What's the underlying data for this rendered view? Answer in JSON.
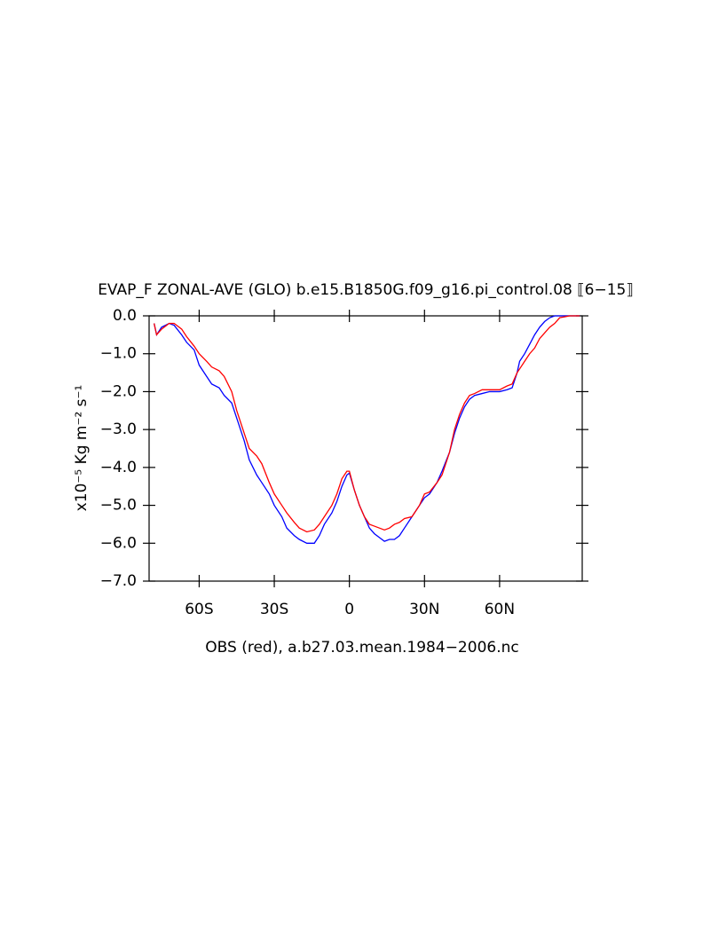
{
  "chart_data": {
    "type": "line",
    "title": "EVAP_F ZONAL-AVE (GLO) b.e15.B1850G.f09_g16.pi_control.08 ⟦6−15⟧",
    "x_label": "OBS (red), a.b27.03.mean.1984−2006.nc",
    "y_label": "x10⁻⁵ Kg m⁻² s⁻¹",
    "x": [
      -78,
      -77,
      -75,
      -72,
      -70,
      -67,
      -65,
      -62,
      -60,
      -57,
      -55,
      -52,
      -50,
      -47,
      -45,
      -42,
      -40,
      -37,
      -35,
      -32,
      -30,
      -27,
      -25,
      -22,
      -20,
      -17,
      -14,
      -12,
      -10,
      -7,
      -5,
      -3,
      -1,
      0,
      2,
      4,
      6,
      8,
      10,
      12,
      14,
      16,
      18,
      20,
      22,
      25,
      28,
      30,
      32,
      35,
      37,
      40,
      42,
      44,
      46,
      48,
      50,
      53,
      56,
      60,
      63,
      65,
      67,
      68,
      70,
      72,
      74,
      76,
      78,
      80,
      82,
      84,
      88,
      92
    ],
    "series": [
      {
        "color": "#0000ff",
        "values": [
          -0.2,
          -0.5,
          -0.3,
          -0.2,
          -0.25,
          -0.5,
          -0.7,
          -0.9,
          -1.3,
          -1.6,
          -1.8,
          -1.9,
          -2.1,
          -2.3,
          -2.7,
          -3.3,
          -3.8,
          -4.2,
          -4.4,
          -4.7,
          -5.0,
          -5.3,
          -5.6,
          -5.8,
          -5.9,
          -6.0,
          -6.0,
          -5.8,
          -5.5,
          -5.2,
          -4.9,
          -4.5,
          -4.2,
          -4.15,
          -4.6,
          -5.0,
          -5.3,
          -5.6,
          -5.75,
          -5.85,
          -5.95,
          -5.9,
          -5.9,
          -5.8,
          -5.6,
          -5.3,
          -5.0,
          -4.8,
          -4.7,
          -4.4,
          -4.1,
          -3.6,
          -3.1,
          -2.7,
          -2.4,
          -2.2,
          -2.1,
          -2.05,
          -2.0,
          -2.0,
          -1.95,
          -1.9,
          -1.5,
          -1.2,
          -1.0,
          -0.75,
          -0.5,
          -0.3,
          -0.15,
          -0.05,
          0,
          0,
          0,
          0
        ]
      },
      {
        "color": "#ff0000",
        "values": [
          -0.2,
          -0.5,
          -0.35,
          -0.2,
          -0.2,
          -0.35,
          -0.55,
          -0.8,
          -1.0,
          -1.2,
          -1.35,
          -1.45,
          -1.6,
          -2.0,
          -2.5,
          -3.1,
          -3.5,
          -3.7,
          -3.9,
          -4.4,
          -4.7,
          -5.0,
          -5.2,
          -5.45,
          -5.6,
          -5.7,
          -5.65,
          -5.5,
          -5.3,
          -5.0,
          -4.7,
          -4.3,
          -4.1,
          -4.1,
          -4.6,
          -5.0,
          -5.3,
          -5.5,
          -5.55,
          -5.6,
          -5.65,
          -5.6,
          -5.5,
          -5.45,
          -5.35,
          -5.3,
          -5.0,
          -4.7,
          -4.65,
          -4.4,
          -4.2,
          -3.6,
          -3.0,
          -2.6,
          -2.3,
          -2.1,
          -2.05,
          -1.95,
          -1.95,
          -1.95,
          -1.85,
          -1.8,
          -1.5,
          -1.4,
          -1.2,
          -1.0,
          -0.85,
          -0.6,
          -0.45,
          -0.3,
          -0.2,
          -0.05,
          0,
          0
        ]
      }
    ],
    "xlim": [
      -80,
      93
    ],
    "xticks": [
      {
        "value": -60,
        "label": "60S"
      },
      {
        "value": -30,
        "label": "30S"
      },
      0,
      {
        "value": 30,
        "label": "30N"
      },
      {
        "value": 60,
        "label": "60N"
      }
    ],
    "ylim": [
      -7,
      0
    ],
    "yticks": [
      {
        "value": 0,
        "label": "0.0"
      },
      {
        "value": -1,
        "label": "−1.0"
      },
      {
        "value": -2,
        "label": "−2.0"
      },
      {
        "value": -3,
        "label": "−3.0"
      },
      {
        "value": -4,
        "label": "−4.0"
      },
      {
        "value": -5,
        "label": "−5.0"
      },
      {
        "value": -6,
        "label": "−6.0"
      },
      {
        "value": -7,
        "label": "−7.0"
      }
    ]
  }
}
